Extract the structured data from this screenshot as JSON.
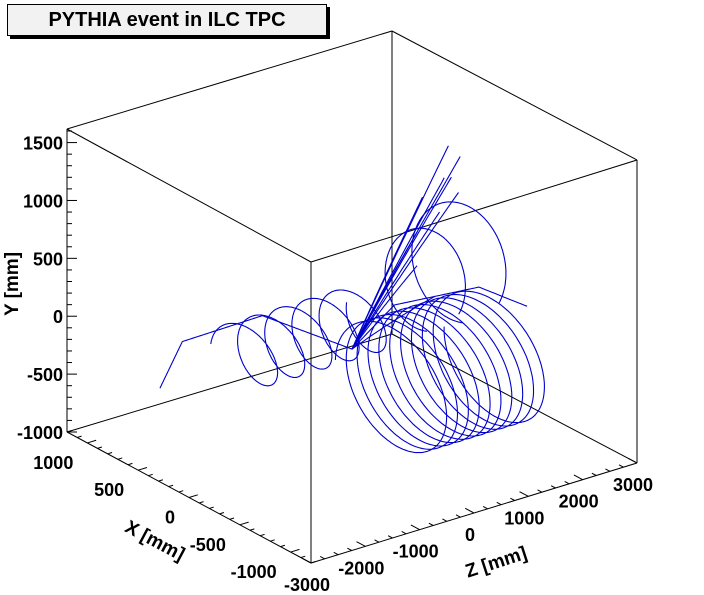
{
  "chart_data": {
    "type": "3d-line",
    "title": "PYTHIA event in ILC TPC",
    "axes": {
      "x": {
        "label": "X [mm]",
        "range": [
          -1200,
          1200
        ],
        "ticks": [
          1000,
          500,
          0,
          -500,
          -1000
        ],
        "tick_labels": [
          "1000",
          "500",
          "0",
          "-500",
          "-1000"
        ]
      },
      "y": {
        "label": "Y [mm]",
        "range": [
          -1000,
          1600
        ],
        "ticks": [
          1500,
          1000,
          500,
          0,
          -500,
          -1000
        ],
        "tick_labels": [
          "1500",
          "1000",
          "500",
          "0",
          "-500",
          "-1000"
        ]
      },
      "z": {
        "label": "Z [mm]",
        "range": [
          -3000,
          3000
        ],
        "ticks": [
          -3000,
          -2000,
          -1000,
          0,
          1000,
          2000,
          3000
        ],
        "tick_labels": [
          "-3000",
          "-2000",
          "-1000",
          "0",
          "1000",
          "2000",
          "3000"
        ]
      }
    },
    "line_color": "#0000cc",
    "tracks": [
      {
        "kind": "straight",
        "x": [
          0,
          -1300
        ],
        "y": [
          -150,
          1050
        ],
        "z": [
          0,
          -900
        ]
      },
      {
        "kind": "straight",
        "x": [
          0,
          -800
        ],
        "y": [
          -150,
          1280
        ],
        "z": [
          0,
          -300
        ]
      },
      {
        "kind": "straight",
        "x": [
          0,
          -700
        ],
        "y": [
          -150,
          1320
        ],
        "z": [
          0,
          300
        ]
      },
      {
        "kind": "straight",
        "x": [
          0,
          -640
        ],
        "y": [
          -150,
          1450
        ],
        "z": [
          0,
          100
        ]
      },
      {
        "kind": "straight",
        "x": [
          0,
          -620
        ],
        "y": [
          -150,
          1380
        ],
        "z": [
          0,
          800
        ]
      },
      {
        "kind": "straight",
        "x": [
          0,
          -560
        ],
        "y": [
          -150,
          1500
        ],
        "z": [
          0,
          650
        ]
      },
      {
        "kind": "straight",
        "x": [
          0,
          -470
        ],
        "y": [
          -150,
          1420
        ],
        "z": [
          0,
          950
        ]
      },
      {
        "kind": "straight",
        "x": [
          0,
          -450
        ],
        "y": [
          -150,
          1560
        ],
        "z": [
          0,
          1150
        ]
      },
      {
        "kind": "straight",
        "x": [
          0,
          -880
        ],
        "y": [
          -150,
          1050
        ],
        "z": [
          0,
          -450
        ]
      },
      {
        "kind": "straight",
        "x": [
          0,
          -200
        ],
        "y": [
          -150,
          1500
        ],
        "z": [
          0,
          1400
        ]
      },
      {
        "kind": "curl",
        "x": [
          0,
          400,
          600,
          500
        ],
        "y": [
          -150,
          80,
          -80,
          -350
        ],
        "z": [
          0,
          -900,
          -2000,
          -2600
        ]
      },
      {
        "kind": "curl",
        "x": [
          0,
          -150,
          -500,
          -600
        ],
        "y": [
          -150,
          230,
          420,
          200
        ],
        "z": [
          0,
          500,
          1400,
          2100
        ]
      },
      {
        "kind": "helix",
        "center": [
          -250,
          -400
        ],
        "radius": 520,
        "z_range": [
          200,
          2200
        ],
        "turns": 10
      },
      {
        "kind": "helix",
        "center": [
          -100,
          150
        ],
        "radius": 260,
        "z_range": [
          -2300,
          200
        ],
        "turns": 5
      },
      {
        "kind": "loop",
        "center": [
          -400,
          550
        ],
        "radius": 380,
        "z": 600
      },
      {
        "kind": "loop",
        "center": [
          -250,
          500
        ],
        "radius": 450,
        "z": 1500
      }
    ]
  }
}
